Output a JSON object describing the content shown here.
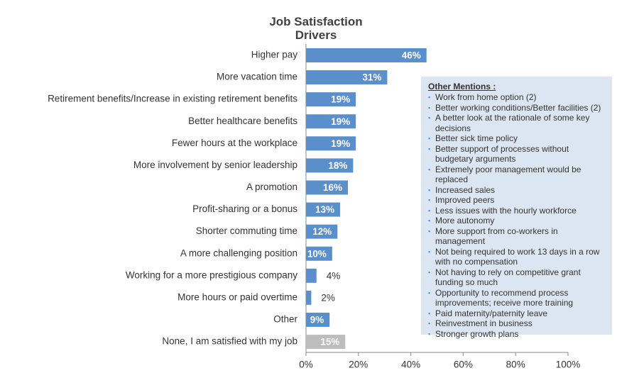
{
  "chart_data": {
    "type": "bar",
    "orientation": "horizontal",
    "title": "Job Satisfaction Drivers",
    "categories": [
      "Higher pay",
      "More vacation time",
      "Retirement benefits/Increase in existing retirement benefits",
      "Better healthcare benefits",
      "Fewer hours at the workplace",
      "More involvement by senior leadership",
      "A promotion",
      "Profit-sharing or a bonus",
      "Shorter commuting time",
      "A more challenging position",
      "Working for a more prestigious company",
      "More hours or paid overtime",
      "Other",
      "None, I am satisfied with my job"
    ],
    "values": [
      46,
      31,
      19,
      19,
      19,
      18,
      16,
      13,
      12,
      10,
      4,
      2,
      9,
      15
    ],
    "value_labels": [
      "46%",
      "31%",
      "19%",
      "19%",
      "19%",
      "18%",
      "16%",
      "13%",
      "12%",
      "10%",
      "4%",
      "2%",
      "9%",
      "15%"
    ],
    "colors": [
      "#5b8fcb",
      "#5b8fcb",
      "#5b8fcb",
      "#5b8fcb",
      "#5b8fcb",
      "#5b8fcb",
      "#5b8fcb",
      "#5b8fcb",
      "#5b8fcb",
      "#5b8fcb",
      "#5b8fcb",
      "#5b8fcb",
      "#5b8fcb",
      "#bdbdbd"
    ],
    "xlim": [
      0,
      100
    ],
    "xticks": [
      {
        "value": 0,
        "label": "0%"
      },
      {
        "value": 20,
        "label": "20%"
      },
      {
        "value": 40,
        "label": "40%"
      },
      {
        "value": 60,
        "label": "60%"
      },
      {
        "value": 80,
        "label": "80%"
      },
      {
        "value": 100,
        "label": "100%"
      }
    ],
    "grid": false,
    "annotation": {
      "title": "Other Mentions :",
      "items": [
        "Work from home option (2)",
        "Better working conditions/Better facilities (2)",
        "A better look at the rationale of some key decisions",
        "Better sick time policy",
        "Better support of processes without budgetary arguments",
        "Extremely poor management would be replaced",
        "Increased sales",
        "Improved peers",
        "Less issues with the hourly workforce",
        "More autonomy",
        "More support from co-workers in management",
        "Not being required to work 13 days in a row with no compensation",
        "Not having to rely on competitive grant funding so much",
        "Opportunity to recommend process improvements; receive more training",
        "Paid maternity/paternity leave",
        "Reinvestment in business",
        "Stronger growth plans"
      ]
    }
  }
}
